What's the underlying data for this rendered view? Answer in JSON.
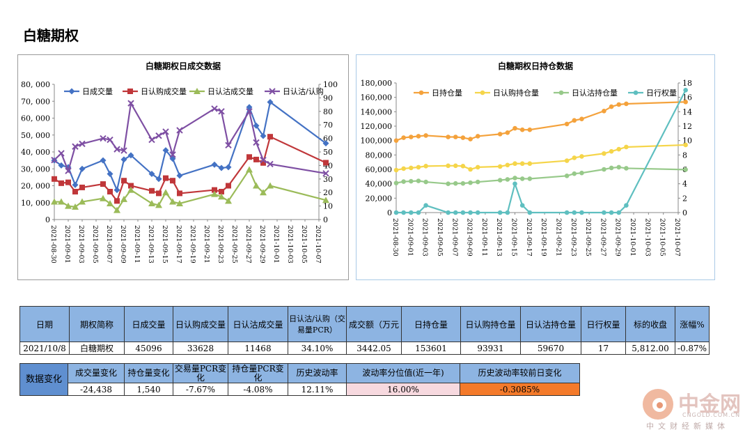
{
  "page": {
    "title": "白糖期权"
  },
  "chart_data": [
    {
      "type": "line",
      "title": "白糖期权日成交数据",
      "x": [
        "2021-08-30",
        "2021-08-31",
        "2021-09-01",
        "2021-09-02",
        "2021-09-03",
        "2021-09-06",
        "2021-09-07",
        "2021-09-08",
        "2021-09-09",
        "2021-09-10",
        "2021-09-13",
        "2021-09-14",
        "2021-09-15",
        "2021-09-16",
        "2021-09-17",
        "2021-09-22",
        "2021-09-23",
        "2021-09-24",
        "2021-09-27",
        "2021-09-28",
        "2021-09-29",
        "2021-09-30",
        "2021-10-08"
      ],
      "x_tick_labels": [
        "2021-08-30",
        "2021-09-01",
        "2021-09-03",
        "2021-09-05",
        "2021-09-07",
        "2021-09-09",
        "2021-09-11",
        "2021-09-13",
        "2021-09-15",
        "2021-09-17",
        "2021-09-19",
        "2021-09-21",
        "2021-09-23",
        "2021-09-25",
        "2021-09-27",
        "2021-09-29",
        "2021-10-01",
        "2021-10-03",
        "2021-10-05",
        "2021-10-07"
      ],
      "y_left": {
        "lim": [
          0,
          80000
        ],
        "ticks": [
          "0",
          "10, 000",
          "20, 000",
          "30, 000",
          "40, 000",
          "50, 000",
          "60, 000",
          "70, 000",
          "80, 000"
        ]
      },
      "y_right": {
        "lim": [
          0,
          100
        ],
        "ticks": [
          "0",
          "10",
          "20",
          "30",
          "40",
          "50",
          "60",
          "70",
          "80",
          "90",
          "100"
        ]
      },
      "legend_position": "top",
      "series": [
        {
          "name": "日成交量",
          "axis": "left",
          "color": "#4472c4",
          "marker": "diamond",
          "values": [
            35000,
            32000,
            31000,
            20500,
            30000,
            35000,
            27000,
            17500,
            35500,
            38000,
            27000,
            24000,
            41000,
            36000,
            26000,
            32500,
            30500,
            31000,
            66500,
            55500,
            49500,
            69500,
            45096
          ]
        },
        {
          "name": "日认购成交量",
          "axis": "left",
          "color": "#c0373a",
          "marker": "square",
          "values": [
            24000,
            21500,
            22000,
            16500,
            19000,
            21000,
            16500,
            11000,
            23000,
            20000,
            17000,
            15500,
            24500,
            23000,
            15500,
            17500,
            16500,
            20000,
            37000,
            35500,
            33500,
            49000,
            33628
          ]
        },
        {
          "name": "日认沽成交量",
          "axis": "left",
          "color": "#9bbb59",
          "marker": "triangle",
          "values": [
            10500,
            10500,
            8000,
            7500,
            10500,
            12500,
            9500,
            5500,
            12000,
            17500,
            9500,
            8500,
            16000,
            10500,
            9500,
            15000,
            13500,
            11000,
            29500,
            20000,
            16000,
            20000,
            11468
          ]
        },
        {
          "name": "日认沽/认购",
          "axis": "right",
          "color": "#7e4fa3",
          "marker": "x",
          "values": [
            44,
            49,
            36,
            54,
            56,
            60,
            59,
            52,
            51,
            86,
            59,
            62,
            65,
            48,
            66,
            82,
            80,
            55,
            80,
            57,
            44,
            41,
            34.1
          ]
        }
      ]
    },
    {
      "type": "line",
      "title": "白糖期权日持仓数据",
      "x": [
        "2021-08-30",
        "2021-08-31",
        "2021-09-01",
        "2021-09-02",
        "2021-09-03",
        "2021-09-06",
        "2021-09-07",
        "2021-09-08",
        "2021-09-09",
        "2021-09-10",
        "2021-09-13",
        "2021-09-14",
        "2021-09-15",
        "2021-09-16",
        "2021-09-17",
        "2021-09-22",
        "2021-09-23",
        "2021-09-24",
        "2021-09-27",
        "2021-09-28",
        "2021-09-29",
        "2021-09-30",
        "2021-10-08"
      ],
      "x_tick_labels": [
        "2021-08-30",
        "2021-09-01",
        "2021-09-03",
        "2021-09-05",
        "2021-09-07",
        "2021-09-09",
        "2021-09-11",
        "2021-09-13",
        "2021-09-15",
        "2021-09-17",
        "2021-09-19",
        "2021-09-21",
        "2021-09-23",
        "2021-09-25",
        "2021-09-27",
        "2021-09-29",
        "2021-10-01",
        "2021-10-03",
        "2021-10-05",
        "2021-10-07"
      ],
      "y_left": {
        "lim": [
          0,
          180000
        ],
        "ticks": [
          "0",
          "20,000",
          "40,000",
          "60,000",
          "80,000",
          "100,000",
          "120,000",
          "140,000",
          "160,000",
          "180,000"
        ]
      },
      "y_right": {
        "lim": [
          0,
          18
        ],
        "ticks": [
          "0",
          "2",
          "4",
          "6",
          "8",
          "10",
          "12",
          "14",
          "16",
          "18"
        ]
      },
      "legend_position": "top",
      "series": [
        {
          "name": "日持仓量",
          "axis": "left",
          "color": "#f4a23c",
          "marker": "circle",
          "values": [
            100000,
            104000,
            105000,
            106000,
            107000,
            105000,
            105000,
            104000,
            102000,
            106000,
            109000,
            111000,
            117000,
            115000,
            115000,
            123000,
            128000,
            130000,
            141000,
            147000,
            150000,
            151000,
            153601
          ]
        },
        {
          "name": "日认购持仓量",
          "axis": "left",
          "color": "#f5d54a",
          "marker": "circle",
          "values": [
            59000,
            61000,
            62000,
            63000,
            64500,
            65000,
            65000,
            64500,
            60000,
            63000,
            64000,
            66000,
            68000,
            68000,
            68000,
            72000,
            76000,
            78000,
            82000,
            85000,
            88000,
            91000,
            93931
          ]
        },
        {
          "name": "日认沽持仓量",
          "axis": "left",
          "color": "#97c98a",
          "marker": "circle",
          "values": [
            41000,
            43000,
            43500,
            44000,
            42500,
            40000,
            40500,
            40500,
            41500,
            42500,
            45000,
            46000,
            48000,
            47000,
            47000,
            51000,
            54000,
            55000,
            60000,
            62000,
            63000,
            61500,
            59670
          ]
        },
        {
          "name": "日行权量",
          "axis": "right",
          "color": "#5fbfc0",
          "marker": "circle",
          "values": [
            0,
            0,
            0,
            0,
            1,
            0,
            0,
            0,
            0,
            0,
            0,
            0,
            4,
            1,
            0,
            0,
            0,
            0,
            0,
            0,
            0,
            1,
            17
          ]
        }
      ]
    }
  ],
  "table_daily": {
    "headers": [
      "日期",
      "期权简称",
      "日成交量",
      "日认购成交量",
      "日认沽成交量",
      "日认沽/认购（交易量PCR）",
      "成交额（万元",
      "日持仓量",
      "日认购持仓量",
      "日认沽持仓量",
      "日行权量",
      "标的收盘",
      "涨幅%"
    ],
    "row": [
      "2021/10/8",
      "白糖期权",
      "45096",
      "33628",
      "11468",
      "34.10%",
      "3442.05",
      "153601",
      "93931",
      "59670",
      "17",
      "5,812.00",
      "-0.87%"
    ]
  },
  "table_change": {
    "row_header": "数据变化",
    "headers": [
      "成交量变化",
      "持仓量变化",
      "交易量PCR变化",
      "持仓量PCR变化",
      "历史波动率",
      "波动率分位值(近一年)",
      "历史波动率较前日变化"
    ],
    "row": [
      "-24,438",
      "1,540",
      "-7.67%",
      "-4.08%",
      "12.11%",
      "16.00%",
      "-0.3085%"
    ]
  },
  "logo": {
    "cn": "中金网",
    "en": "CNGOLD.COM.CN",
    "sub": "中文财经新媒体"
  }
}
